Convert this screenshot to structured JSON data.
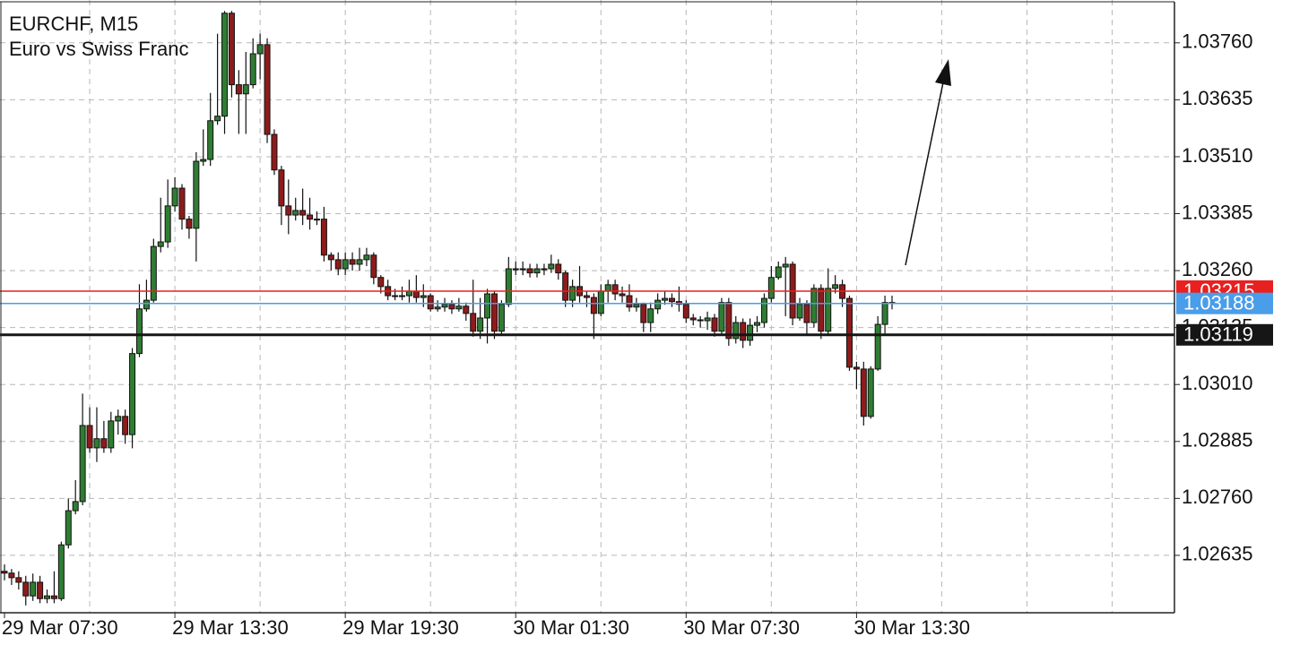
{
  "chart_data": {
    "type": "candlestick",
    "title": "EURCHF, M15",
    "subtitle": "Euro vs Swiss Franc",
    "categories": [
      "29 Mar 07:30",
      null,
      null,
      null,
      null,
      null,
      null,
      null,
      null,
      null,
      null,
      null,
      null,
      null,
      null,
      null,
      null,
      null,
      null,
      null,
      null,
      null,
      null,
      null,
      "29 Mar 13:30",
      null,
      null,
      null,
      null,
      null,
      null,
      null,
      null,
      null,
      null,
      null,
      null,
      null,
      null,
      null,
      null,
      null,
      null,
      null,
      null,
      null,
      null,
      null,
      "29 Mar 19:30",
      null,
      null,
      null,
      null,
      null,
      null,
      null,
      null,
      null,
      null,
      null,
      null,
      null,
      null,
      null,
      null,
      null,
      null,
      null,
      null,
      null,
      null,
      null,
      "30 Mar 01:30",
      null,
      null,
      null,
      null,
      null,
      null,
      null,
      null,
      null,
      null,
      null,
      null,
      null,
      null,
      null,
      null,
      null,
      null,
      null,
      null,
      null,
      null,
      null,
      "30 Mar 07:30",
      null,
      null,
      null,
      null,
      null,
      null,
      null,
      null,
      null,
      null,
      null,
      null,
      null,
      null,
      null,
      null,
      null,
      null,
      null,
      null,
      null,
      null,
      null,
      "30 Mar 13:30",
      null,
      null,
      null,
      null,
      null
    ],
    "series": [
      {
        "up_color": "#2f7d32",
        "down_color": "#8e1b1b",
        "open": [
          1.026,
          1.02596,
          1.02586,
          1.02576,
          1.02546,
          1.02576,
          1.0254,
          1.02546,
          1.0254,
          1.02658,
          1.02733,
          1.02753,
          1.0292,
          1.02871,
          1.02891,
          1.02871,
          1.0293,
          1.0294,
          1.029,
          1.03078,
          1.03176,
          1.03195,
          1.03313,
          1.03323,
          1.03402,
          1.03441,
          1.03373,
          1.03353,
          1.035,
          1.03504,
          1.03589,
          1.03599,
          1.03825,
          1.03668,
          1.03648,
          1.03668,
          1.03736,
          1.03756,
          1.03559,
          1.03481,
          1.03402,
          1.03382,
          1.03392,
          1.03382,
          1.03373,
          1.03373,
          1.03294,
          1.03284,
          1.03264,
          1.03284,
          1.03274,
          1.03284,
          1.03294,
          1.03245,
          1.03225,
          1.03205,
          1.03205,
          1.03205,
          1.03215,
          1.03201,
          1.03205,
          1.03176,
          1.0318,
          1.03186,
          1.03176,
          1.03182,
          1.03166,
          1.03127,
          1.03156,
          1.03209,
          1.03127,
          1.03186,
          1.03264,
          1.03264,
          1.03264,
          1.03255,
          1.03264,
          1.03264,
          1.03274,
          1.03255,
          1.03195,
          1.03225,
          1.03205,
          1.03201,
          1.03166,
          1.03215,
          1.03229,
          1.03209,
          1.03205,
          1.0318,
          1.03186,
          1.03146,
          1.03176,
          1.03195,
          1.03199,
          1.03192,
          1.03186,
          1.03156,
          1.03152,
          1.0315,
          1.03156,
          1.03127,
          1.0319,
          1.03111,
          1.03146,
          1.03107,
          1.0314,
          1.03146,
          1.03199,
          1.03245,
          1.03268,
          1.03274,
          1.03156,
          1.03186,
          1.03146,
          1.03221,
          1.03127,
          1.03221,
          1.03229,
          1.03199,
          1.03048,
          1.03044,
          1.0294,
          1.03044,
          1.03142,
          1.0319
        ],
        "high": [
          1.02615,
          1.02605,
          1.026,
          1.0259,
          1.02595,
          1.0259,
          1.0256,
          1.026,
          1.02665,
          1.0276,
          1.028,
          1.0299,
          1.0296,
          1.0296,
          1.0293,
          1.0295,
          1.02955,
          1.02955,
          1.0309,
          1.0323,
          1.0324,
          1.0333,
          1.0342,
          1.0346,
          1.03465,
          1.0345,
          1.0338,
          1.0352,
          1.0357,
          1.0365,
          1.0378,
          1.0383,
          1.0383,
          1.037,
          1.0374,
          1.0377,
          1.0378,
          1.0377,
          1.0357,
          1.0349,
          1.0346,
          1.0342,
          1.0344,
          1.0342,
          1.0339,
          1.034,
          1.033,
          1.033,
          1.033,
          1.033,
          1.0331,
          1.0331,
          1.033,
          1.0325,
          1.0324,
          1.0322,
          1.03225,
          1.0324,
          1.0325,
          1.0323,
          1.0321,
          1.03195,
          1.032,
          1.03195,
          1.032,
          1.0319,
          1.0324,
          1.032,
          1.0322,
          1.03215,
          1.03195,
          1.0329,
          1.0328,
          1.0328,
          1.03275,
          1.03275,
          1.03275,
          1.03295,
          1.03285,
          1.0326,
          1.0324,
          1.0327,
          1.03215,
          1.0321,
          1.0323,
          1.0324,
          1.0324,
          1.03225,
          1.0323,
          1.032,
          1.0319,
          1.0319,
          1.0321,
          1.03215,
          1.0321,
          1.03225,
          1.03195,
          1.03165,
          1.0316,
          1.0317,
          1.03165,
          1.032,
          1.032,
          1.0316,
          1.03155,
          1.03155,
          1.0316,
          1.0321,
          1.0327,
          1.0328,
          1.0329,
          1.0328,
          1.032,
          1.03195,
          1.0323,
          1.0323,
          1.03265,
          1.0325,
          1.0324,
          1.03205,
          1.0306,
          1.0306,
          1.0305,
          1.0316,
          1.03205,
          1.03205
        ],
        "low": [
          1.0258,
          1.0257,
          1.0256,
          1.02525,
          1.02535,
          1.0253,
          1.0253,
          1.0253,
          1.02535,
          1.0265,
          1.02725,
          1.02745,
          1.0286,
          1.0284,
          1.0286,
          1.0286,
          1.029,
          1.0288,
          1.0287,
          1.0307,
          1.0317,
          1.0319,
          1.033,
          1.0331,
          1.0339,
          1.0335,
          1.0333,
          1.0328,
          1.0349,
          1.0349,
          1.0358,
          1.0356,
          1.0364,
          1.0356,
          1.0356,
          1.0366,
          1.0368,
          1.0354,
          1.0347,
          1.0336,
          1.0334,
          1.0337,
          1.0336,
          1.0335,
          1.0336,
          1.0328,
          1.0326,
          1.0325,
          1.0325,
          1.0326,
          1.0326,
          1.0327,
          1.0323,
          1.0321,
          1.03195,
          1.03195,
          1.03195,
          1.0319,
          1.0319,
          1.0318,
          1.0317,
          1.0317,
          1.0317,
          1.03165,
          1.0317,
          1.0315,
          1.03115,
          1.0311,
          1.031,
          1.0311,
          1.0312,
          1.0318,
          1.0325,
          1.0325,
          1.03245,
          1.03245,
          1.0325,
          1.03255,
          1.0324,
          1.0318,
          1.0318,
          1.0319,
          1.0318,
          1.0311,
          1.0316,
          1.0319,
          1.03195,
          1.0319,
          1.0317,
          1.0317,
          1.03125,
          1.03125,
          1.03165,
          1.03185,
          1.0318,
          1.0317,
          1.03145,
          1.0314,
          1.03135,
          1.0313,
          1.03115,
          1.0312,
          1.03095,
          1.031,
          1.0309,
          1.03095,
          1.03125,
          1.03135,
          1.0319,
          1.0324,
          1.0316,
          1.0314,
          1.0315,
          1.0312,
          1.03135,
          1.0311,
          1.0312,
          1.0321,
          1.0318,
          1.0304,
          1.03,
          1.0292,
          1.02935,
          1.0304,
          1.0312,
          1.03175
        ],
        "close": [
          1.02596,
          1.02586,
          1.02576,
          1.02546,
          1.02576,
          1.0254,
          1.02546,
          1.0254,
          1.02658,
          1.02733,
          1.02753,
          1.0292,
          1.02871,
          1.02891,
          1.02871,
          1.0293,
          1.0294,
          1.029,
          1.03078,
          1.03176,
          1.03195,
          1.03313,
          1.03323,
          1.03402,
          1.03441,
          1.03373,
          1.03353,
          1.035,
          1.03504,
          1.03589,
          1.03599,
          1.03825,
          1.03668,
          1.03648,
          1.03668,
          1.03736,
          1.03756,
          1.03559,
          1.03481,
          1.03402,
          1.03382,
          1.03392,
          1.03382,
          1.03373,
          1.03373,
          1.03294,
          1.03284,
          1.03264,
          1.03284,
          1.03274,
          1.03284,
          1.03294,
          1.03245,
          1.03225,
          1.03205,
          1.03205,
          1.03205,
          1.03215,
          1.03201,
          1.03205,
          1.03176,
          1.0318,
          1.03186,
          1.03176,
          1.03182,
          1.03166,
          1.03127,
          1.03156,
          1.03209,
          1.03127,
          1.03186,
          1.03264,
          1.03264,
          1.03264,
          1.03255,
          1.03264,
          1.03264,
          1.03274,
          1.03255,
          1.03195,
          1.03225,
          1.03205,
          1.03201,
          1.03166,
          1.03215,
          1.03229,
          1.03209,
          1.03205,
          1.0318,
          1.03186,
          1.03146,
          1.03176,
          1.03195,
          1.03199,
          1.03192,
          1.03186,
          1.03156,
          1.03152,
          1.0315,
          1.03156,
          1.03127,
          1.0319,
          1.03111,
          1.03146,
          1.03107,
          1.0314,
          1.03146,
          1.03199,
          1.03245,
          1.03268,
          1.03274,
          1.03156,
          1.03186,
          1.03146,
          1.03221,
          1.03127,
          1.03221,
          1.03229,
          1.03199,
          1.03048,
          1.03044,
          1.0294,
          1.03044,
          1.03142,
          1.0319,
          1.03188
        ]
      }
    ],
    "ylim": [
      1.02509,
      1.03854
    ],
    "yticks": [
      {
        "value": 1.0376,
        "label": "1.03760"
      },
      1.03635,
      {
        "value": 1.0351,
        "label": "1.03510"
      },
      1.03385,
      {
        "value": 1.0326,
        "label": "1.03260"
      },
      1.03135,
      {
        "value": 1.0301,
        "label": "1.03010"
      },
      1.02885,
      {
        "value": 1.0276,
        "label": "1.02760"
      },
      1.02635
    ],
    "grid": true,
    "price_lines": [
      {
        "value": 1.03215,
        "color": "#e8201f"
      },
      {
        "value": 1.03188,
        "color": "#4a9de8"
      },
      {
        "value": 1.03119,
        "color": "#161616"
      }
    ]
  }
}
